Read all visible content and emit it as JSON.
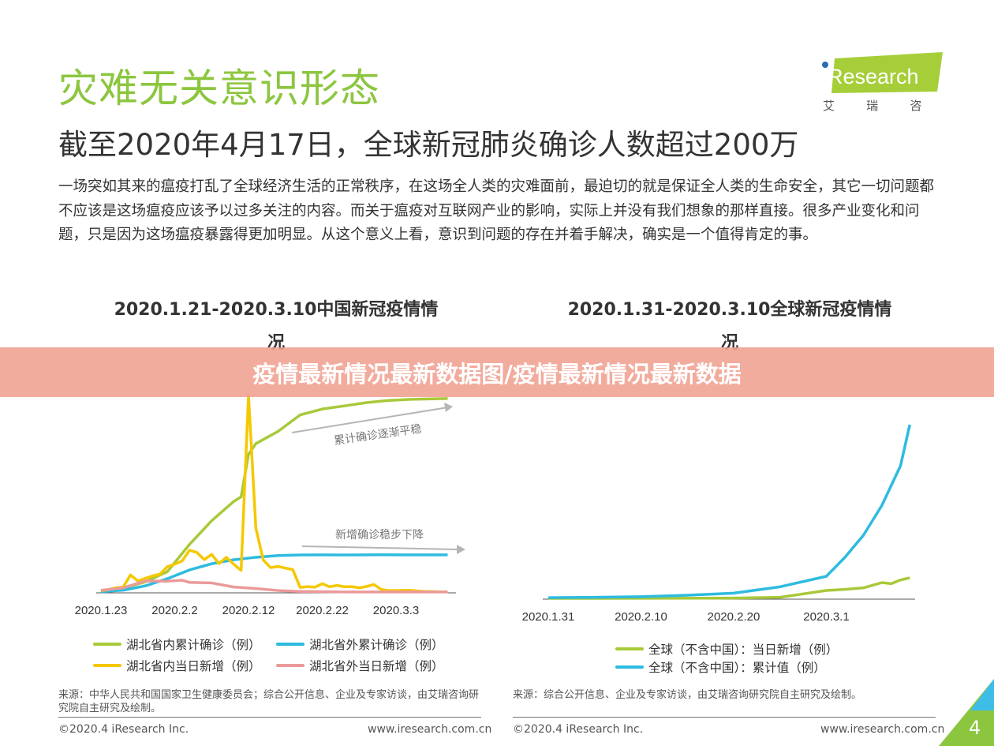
{
  "header": {
    "title": "灾难无关意识形态",
    "subtitle": "截至2020年4月17日，全球新冠肺炎确诊人数超过200万",
    "body": "一场突如其来的瘟疫打乱了全球经济生活的正常秩序，在这场全人类的灾难面前，最迫切的就是保证全人类的生命安全，其它一切问题都不应该是这场瘟疫应该予以过多关注的内容。而关于瘟疫对互联网产业的影响，实际上并没有我们想象的那样直接。很多产业变化和问题，只是因为这场瘟疫暴露得更加明显。从这个意义上看，意识到问题的存在并着手解决，确实是一个值得肯定的事。"
  },
  "logo": {
    "text": "iResearch",
    "cn": "艾 瑞 咨 询",
    "colors": {
      "green": "#a6ce39",
      "blue": "#2b6cb0"
    }
  },
  "banner": {
    "text": "疫情最新情况最新数据图/疫情最新情况最新数据"
  },
  "colors": {
    "green": "#a8c93a",
    "yellow": "#f5c800",
    "blue": "#2ebbe0",
    "pink": "#eb9a9a",
    "arrow": "#b5b5b5"
  },
  "chart_data": [
    {
      "type": "line",
      "title": "2020.1.21-2020.3.10中国新冠疫情情况",
      "x_ticks": [
        "2020.1.23",
        "2020.2.2",
        "2020.2.12",
        "2020.2.22",
        "2020.3.3"
      ],
      "annotations": [
        "累计确诊逐渐平稳",
        "新增确诊稳步下降"
      ],
      "grid": false,
      "legend": "bottom",
      "series": [
        {
          "name": "湖北省内累计确诊（例）",
          "color": "#a8c93a",
          "axis": "cumulative",
          "x": [
            "1.23",
            "1.26",
            "1.29",
            "2.1",
            "2.4",
            "2.7",
            "2.10",
            "2.11",
            "2.12",
            "2.13",
            "2.16",
            "2.19",
            "2.22",
            "2.25",
            "2.28",
            "3.2",
            "3.5",
            "3.10"
          ],
          "y": [
            549,
            1423,
            3554,
            7153,
            16678,
            24953,
            31728,
            33366,
            48206,
            51986,
            56249,
            62031,
            64084,
            65187,
            66337,
            67103,
            67466,
            67760
          ]
        },
        {
          "name": "湖北省外累计确诊（例）",
          "color": "#2ebbe0",
          "axis": "cumulative",
          "x": [
            "1.23",
            "1.26",
            "1.29",
            "2.1",
            "2.4",
            "2.7",
            "2.10",
            "2.13",
            "2.16",
            "2.19",
            "2.22",
            "2.25",
            "3.1",
            "3.10"
          ],
          "y": [
            95,
            657,
            2157,
            4672,
            7746,
            9912,
            11309,
            12177,
            12769,
            12983,
            13036,
            13009,
            13044,
            13023
          ]
        },
        {
          "name": "湖北省内当日新增（例）",
          "color": "#f5c800",
          "axis": "daily",
          "x": [
            "1.23",
            "1.24",
            "1.25",
            "1.26",
            "1.27",
            "1.28",
            "1.29",
            "1.30",
            "1.31",
            "2.1",
            "2.2",
            "2.3",
            "2.4",
            "2.5",
            "2.6",
            "2.7",
            "2.8",
            "2.9",
            "2.10",
            "2.11",
            "2.12",
            "2.13",
            "2.14",
            "2.15",
            "2.16",
            "2.17",
            "2.18",
            "2.19",
            "2.20",
            "2.21",
            "2.22",
            "2.23",
            "2.24",
            "2.25",
            "2.26",
            "2.27",
            "2.28",
            "2.29",
            "3.1",
            "3.2",
            "3.3",
            "3.4",
            "3.5",
            "3.6",
            "3.7",
            "3.8",
            "3.9",
            "3.10"
          ],
          "y": [
            105,
            180,
            323,
            371,
            1291,
            840,
            1032,
            1220,
            1347,
            1921,
            2103,
            2345,
            3156,
            2987,
            2447,
            2841,
            2147,
            2618,
            2097,
            1638,
            14840,
            4823,
            2420,
            1843,
            1933,
            1807,
            1693,
            349,
            411,
            366,
            630,
            398,
            499,
            401,
            409,
            318,
            423,
            570,
            196,
            114,
            115,
            134,
            126,
            74,
            41,
            36,
            17,
            13
          ]
        },
        {
          "name": "湖北省外当日新增（例）",
          "color": "#eb9a9a",
          "axis": "daily",
          "x": [
            "1.23",
            "1.26",
            "1.29",
            "2.1",
            "2.3",
            "2.4",
            "2.7",
            "2.10",
            "2.13",
            "2.16",
            "2.19",
            "2.22",
            "2.25",
            "3.1",
            "3.10"
          ],
          "y": [
            131,
            315,
            840,
            822,
            890,
            731,
            689,
            381,
            267,
            115,
            45,
            28,
            5,
            6,
            11
          ]
        }
      ]
    },
    {
      "type": "line",
      "title": "2020.1.31-2020.3.10全球新冠疫情情况",
      "x_ticks": [
        "2020.1.31",
        "2020.2.10",
        "2020.2.20",
        "2020.3.1"
      ],
      "grid": false,
      "legend": "bottom",
      "series": [
        {
          "name": "全球（不含中国）：当日新增（例）",
          "color": "#a8c93a",
          "x": [
            "1.31",
            "2.10",
            "2.20",
            "2.25",
            "3.1",
            "3.3",
            "3.5",
            "3.7",
            "3.8",
            "3.9",
            "3.10"
          ],
          "y": [
            0,
            10,
            60,
            200,
            1500,
            1700,
            2000,
            3000,
            2800,
            3500,
            3900
          ]
        },
        {
          "name": "全球（不含中国）：累计值（例）",
          "color": "#2ebbe0",
          "x": [
            "1.31",
            "2.5",
            "2.10",
            "2.15",
            "2.20",
            "2.25",
            "3.1",
            "3.3",
            "3.5",
            "3.7",
            "3.9",
            "3.10"
          ],
          "y": [
            130,
            200,
            320,
            600,
            1000,
            2200,
            4200,
            7800,
            12000,
            17700,
            25200,
            33000
          ]
        }
      ]
    }
  ],
  "footer": {
    "left_source": "来源：中华人民共和国国家卫生健康委员会；综合公开信息、企业及专家访谈，由艾瑞咨询研究院自主研究及绘制。",
    "right_source": "来源：综合公开信息、企业及专家访谈，由艾瑞咨询研究院自主研究及绘制。",
    "copyright": "©2020.4 iResearch Inc.",
    "url": "www.iresearch.com.cn",
    "page": "4"
  }
}
